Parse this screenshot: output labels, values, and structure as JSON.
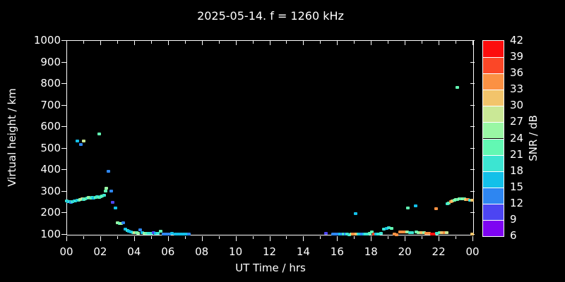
{
  "chart_data": {
    "type": "scatter",
    "title": "2025-05-14. f = 1260 kHz",
    "xlabel": "UT Time / hrs",
    "ylabel": "Virtual height / km",
    "xlim_hours": [
      0,
      24
    ],
    "ylim_km": [
      92,
      1000
    ],
    "grid": false,
    "x_tick_labels": [
      "00",
      "02",
      "04",
      "06",
      "08",
      "10",
      "12",
      "14",
      "16",
      "18",
      "20",
      "22",
      "00"
    ],
    "y_ticks_km": [
      100,
      200,
      300,
      400,
      500,
      600,
      700,
      800,
      900,
      1000
    ],
    "colorbar": {
      "label": "SNR / dB",
      "tick_values": [
        42,
        39,
        36,
        33,
        30,
        27,
        24,
        21,
        18,
        15,
        12,
        9,
        6
      ],
      "bands": [
        {
          "min": 39,
          "max": 42,
          "color": "#FC0D0D"
        },
        {
          "min": 36,
          "max": 39,
          "color": "#FB4727"
        },
        {
          "min": 33,
          "max": 36,
          "color": "#FB9143"
        },
        {
          "min": 30,
          "max": 33,
          "color": "#F2C46B"
        },
        {
          "min": 27,
          "max": 30,
          "color": "#CAE896"
        },
        {
          "min": 24,
          "max": 27,
          "color": "#99F7A4"
        },
        {
          "min": 21,
          "max": 24,
          "color": "#62F8B3"
        },
        {
          "min": 18,
          "max": 21,
          "color": "#3CE5D2"
        },
        {
          "min": 15,
          "max": 18,
          "color": "#13C0E9"
        },
        {
          "min": 12,
          "max": 15,
          "color": "#2E86F1"
        },
        {
          "min": 9,
          "max": 12,
          "color": "#4C45F2"
        },
        {
          "min": 6,
          "max": 9,
          "color": "#7E04F2"
        }
      ]
    },
    "point_format": [
      "hour_ut",
      "virtual_height_km",
      "snr_db"
    ],
    "points": [
      [
        0.02,
        252,
        19
      ],
      [
        0.1,
        248,
        16
      ],
      [
        0.18,
        250,
        19
      ],
      [
        0.27,
        246,
        13
      ],
      [
        0.35,
        249,
        19
      ],
      [
        0.44,
        251,
        16
      ],
      [
        0.52,
        253,
        19
      ],
      [
        0.62,
        255,
        16
      ],
      [
        0.72,
        257,
        19
      ],
      [
        0.8,
        260,
        25
      ],
      [
        0.9,
        262,
        28
      ],
      [
        1.0,
        259,
        19
      ],
      [
        1.1,
        261,
        22
      ],
      [
        1.2,
        264,
        19
      ],
      [
        1.3,
        268,
        25
      ],
      [
        1.4,
        266,
        22
      ],
      [
        1.5,
        270,
        19
      ],
      [
        1.6,
        267,
        16
      ],
      [
        1.7,
        269,
        22
      ],
      [
        1.8,
        271,
        19
      ],
      [
        1.9,
        270,
        22
      ],
      [
        2.0,
        272,
        19
      ],
      [
        2.1,
        274,
        22
      ],
      [
        2.2,
        278,
        19
      ],
      [
        2.28,
        300,
        22
      ],
      [
        2.34,
        312,
        25
      ],
      [
        0.62,
        530,
        16
      ],
      [
        0.84,
        515,
        13
      ],
      [
        1.02,
        530,
        28
      ],
      [
        1.9,
        565,
        22
      ],
      [
        2.46,
        390,
        13
      ],
      [
        2.62,
        298,
        13
      ],
      [
        2.72,
        246,
        10
      ],
      [
        2.86,
        220,
        16
      ],
      [
        3.02,
        150,
        25
      ],
      [
        3.12,
        148,
        22
      ],
      [
        3.22,
        147,
        25
      ],
      [
        3.32,
        150,
        13
      ],
      [
        3.48,
        122,
        16
      ],
      [
        3.58,
        115,
        19
      ],
      [
        3.68,
        110,
        16
      ],
      [
        3.8,
        107,
        16
      ],
      [
        3.92,
        105,
        19
      ],
      [
        4.02,
        104,
        28
      ],
      [
        4.12,
        105,
        22
      ],
      [
        4.22,
        103,
        25
      ],
      [
        4.32,
        117,
        13
      ],
      [
        4.45,
        104,
        16
      ],
      [
        4.58,
        103,
        25
      ],
      [
        4.72,
        102,
        22
      ],
      [
        4.85,
        103,
        19
      ],
      [
        5.0,
        102,
        19
      ],
      [
        5.12,
        104,
        10
      ],
      [
        5.25,
        101,
        16
      ],
      [
        5.4,
        102,
        19
      ],
      [
        5.55,
        112,
        22
      ],
      [
        5.7,
        100,
        13
      ],
      [
        5.88,
        100,
        13
      ],
      [
        6.05,
        100,
        13
      ],
      [
        6.22,
        101,
        16
      ],
      [
        6.42,
        100,
        16
      ],
      [
        6.58,
        100,
        16
      ],
      [
        6.75,
        100,
        16
      ],
      [
        6.92,
        100,
        16
      ],
      [
        7.08,
        100,
        16
      ],
      [
        7.22,
        100,
        13
      ],
      [
        15.3,
        102,
        10
      ],
      [
        15.75,
        100,
        13
      ],
      [
        15.88,
        100,
        13
      ],
      [
        16.02,
        99,
        13
      ],
      [
        16.14,
        100,
        16
      ],
      [
        16.26,
        99,
        13
      ],
      [
        16.38,
        100,
        19
      ],
      [
        16.48,
        98,
        13
      ],
      [
        16.58,
        97,
        19
      ],
      [
        16.68,
        96,
        19
      ],
      [
        16.8,
        98,
        25
      ],
      [
        16.92,
        100,
        34
      ],
      [
        17.02,
        100,
        34
      ],
      [
        17.06,
        194,
        16
      ],
      [
        17.12,
        99,
        31
      ],
      [
        17.22,
        100,
        19
      ],
      [
        17.32,
        100,
        16
      ],
      [
        17.45,
        100,
        13
      ],
      [
        17.56,
        99,
        16
      ],
      [
        17.66,
        100,
        19
      ],
      [
        17.78,
        100,
        19
      ],
      [
        17.9,
        103,
        22
      ],
      [
        18.02,
        108,
        22
      ],
      [
        18.14,
        100,
        37
      ],
      [
        18.28,
        100,
        16
      ],
      [
        18.42,
        99,
        19
      ],
      [
        18.58,
        103,
        19
      ],
      [
        18.75,
        120,
        19
      ],
      [
        18.9,
        125,
        16
      ],
      [
        19.05,
        128,
        19
      ],
      [
        19.2,
        126,
        22
      ],
      [
        19.35,
        97,
        34
      ],
      [
        19.5,
        96,
        34
      ],
      [
        19.68,
        107,
        34
      ],
      [
        19.82,
        108,
        34
      ],
      [
        19.98,
        107,
        34
      ],
      [
        20.12,
        108,
        25
      ],
      [
        20.28,
        106,
        19
      ],
      [
        20.42,
        105,
        19
      ],
      [
        20.65,
        107,
        22
      ],
      [
        20.8,
        105,
        25
      ],
      [
        20.95,
        104,
        31
      ],
      [
        21.1,
        105,
        25
      ],
      [
        21.25,
        103,
        34
      ],
      [
        21.4,
        102,
        34
      ],
      [
        21.58,
        100,
        40
      ],
      [
        21.72,
        100,
        40
      ],
      [
        21.88,
        103,
        19
      ],
      [
        22.02,
        104,
        22
      ],
      [
        22.18,
        104,
        31
      ],
      [
        22.32,
        105,
        34
      ],
      [
        22.45,
        106,
        28
      ],
      [
        23.95,
        100,
        31
      ],
      [
        20.15,
        220,
        22
      ],
      [
        20.6,
        228,
        16
      ],
      [
        21.85,
        218,
        34
      ],
      [
        22.5,
        238,
        19
      ],
      [
        22.6,
        243,
        22
      ],
      [
        22.7,
        248,
        34
      ],
      [
        22.8,
        252,
        31
      ],
      [
        22.9,
        256,
        22
      ],
      [
        23.0,
        258,
        25
      ],
      [
        23.1,
        260,
        22
      ],
      [
        23.2,
        262,
        25
      ],
      [
        23.3,
        263,
        22
      ],
      [
        23.4,
        261,
        25
      ],
      [
        23.5,
        262,
        22
      ],
      [
        23.6,
        260,
        31
      ],
      [
        23.72,
        258,
        34
      ],
      [
        23.85,
        257,
        19
      ],
      [
        23.95,
        256,
        31
      ],
      [
        23.1,
        780,
        22
      ]
    ]
  }
}
